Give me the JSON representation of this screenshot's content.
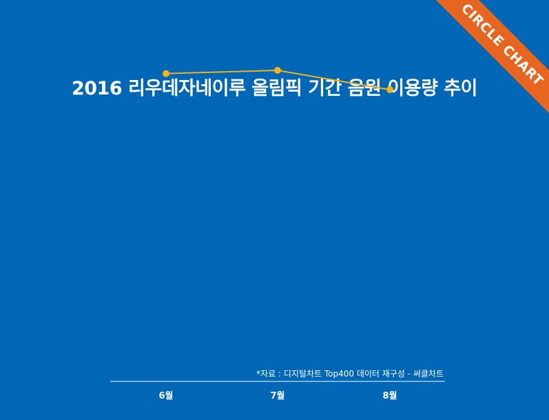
{
  "corner_badge": "CIRCLE CHART",
  "source_note": "*자료 : 디지털차트 Top400 데이터 재구성 - 써클차트",
  "colors": {
    "background": "#0066b6",
    "line": "#f3b316",
    "badge": "#e8651f",
    "axis": "#ffffff"
  },
  "chart_data": {
    "type": "line",
    "title": "2016 리우데자네이루 올림픽 기간 음원 이용량 추이",
    "categories": [
      "6월",
      "7월",
      "8월"
    ],
    "series": [
      {
        "values": [
          100,
          102,
          90
        ]
      }
    ],
    "xlabel": "",
    "ylabel": "",
    "ylim": [
      0,
      120
    ],
    "grid": false,
    "legend": "none"
  }
}
